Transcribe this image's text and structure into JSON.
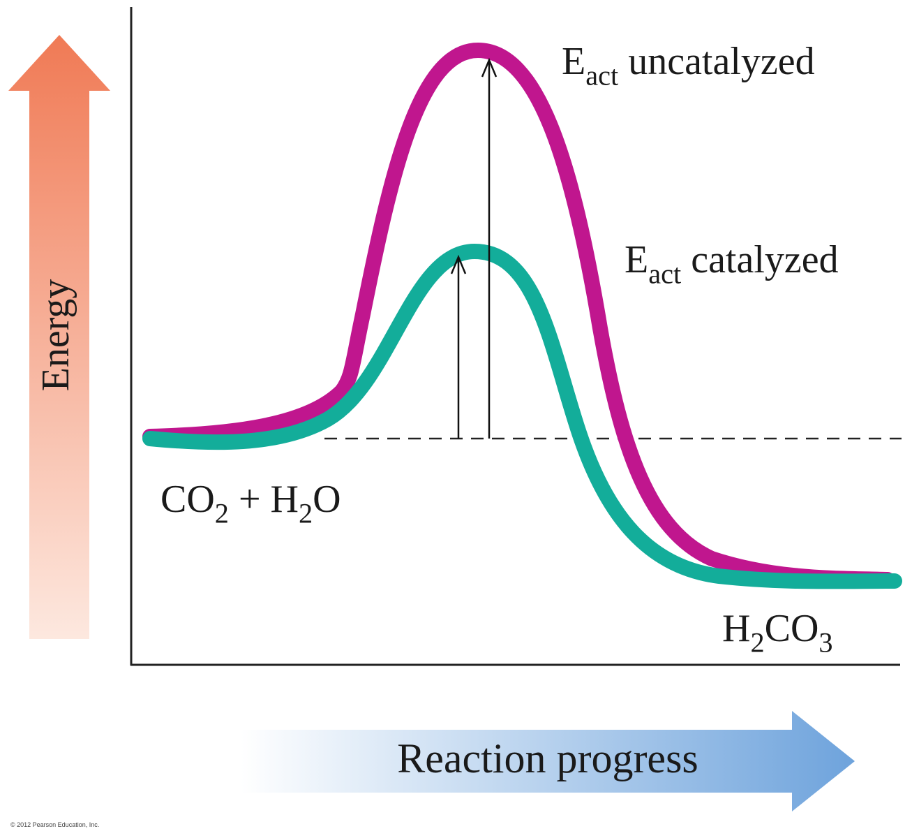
{
  "axes": {
    "y_label": "Energy",
    "x_label": "Reaction progress"
  },
  "labels": {
    "uncatalyzed": [
      {
        "text": "E"
      },
      {
        "sub": "act"
      },
      {
        "text": " uncatalyzed"
      }
    ],
    "catalyzed": [
      {
        "text": "E"
      },
      {
        "sub": "act"
      },
      {
        "text": " catalyzed"
      }
    ],
    "reactants": [
      {
        "text": "CO"
      },
      {
        "sub": "2"
      },
      {
        "text": " + H"
      },
      {
        "sub": "2"
      },
      {
        "text": "O"
      }
    ],
    "product": [
      {
        "text": "H"
      },
      {
        "sub": "2"
      },
      {
        "text": "CO"
      },
      {
        "sub": "3"
      }
    ]
  },
  "copyright": "© 2012 Pearson Education, Inc."
}
